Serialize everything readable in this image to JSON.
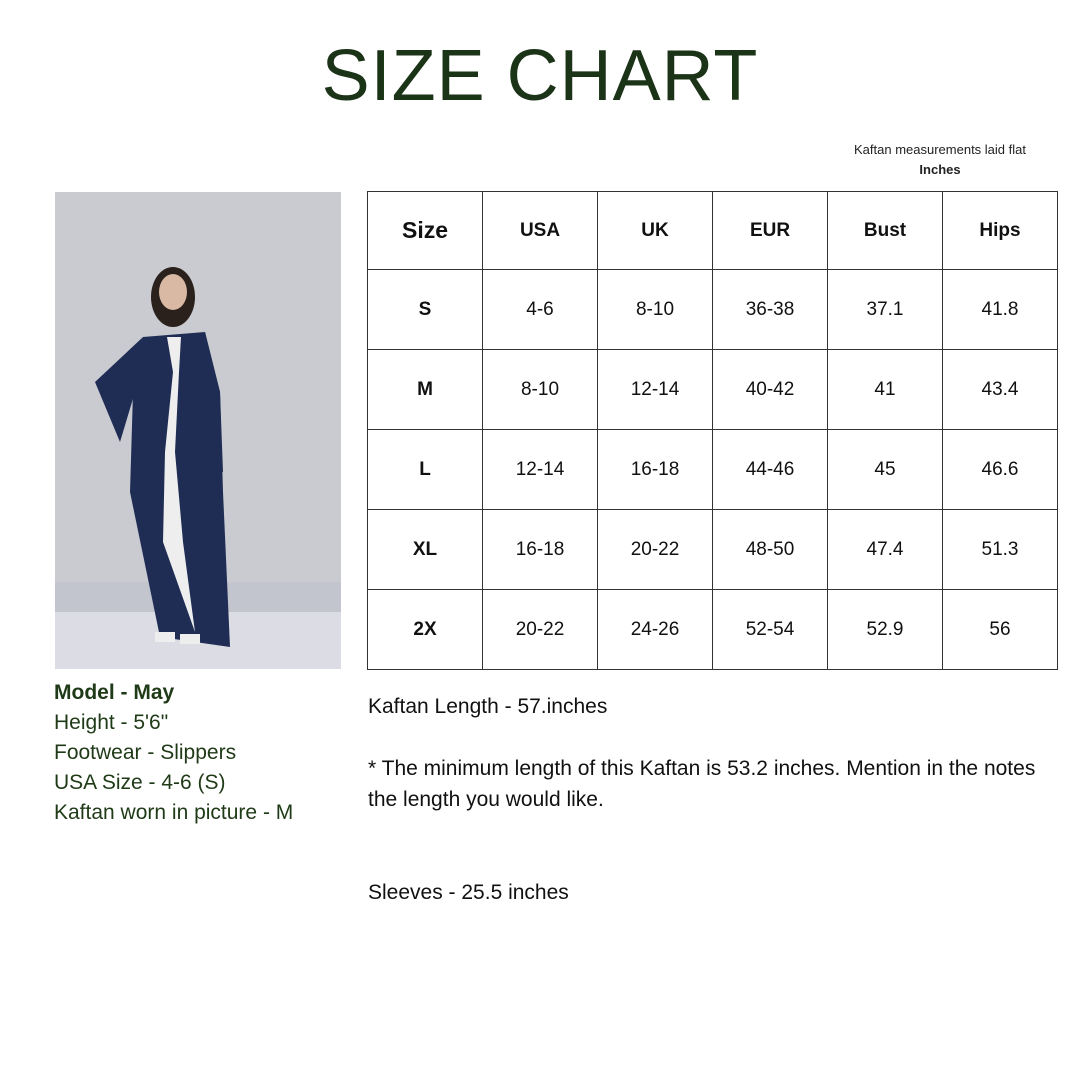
{
  "title": "SIZE CHART",
  "note": {
    "line1": "Kaftan measurements laid flat",
    "line2": "Inches"
  },
  "table": {
    "headers": [
      "Size",
      "USA",
      "UK",
      "EUR",
      "Bust",
      "Hips"
    ],
    "rows": [
      [
        "S",
        "4-6",
        "8-10",
        "36-38",
        "37.1",
        "41.8"
      ],
      [
        "M",
        "8-10",
        "12-14",
        "40-42",
        "41",
        "43.4"
      ],
      [
        "L",
        "12-14",
        "16-18",
        "44-46",
        "45",
        "46.6"
      ],
      [
        "XL",
        "16-18",
        "20-22",
        "48-50",
        "47.4",
        "51.3"
      ],
      [
        "2X",
        "20-22",
        "24-26",
        "52-54",
        "52.9",
        "56"
      ]
    ]
  },
  "model": [
    "Model - May",
    "Height - 5'6\"",
    "Footwear - Slippers",
    "USA Size - 4-6 (S)",
    "Kaftan worn in picture - M"
  ],
  "length": "Kaftan Length - 57.inches",
  "min_length": "* The minimum length of this Kaftan is 53.2 inches. Mention in the notes the length you would like.",
  "sleeves": "Sleeves - 25.5 inches",
  "colors": {
    "title": "#1b3317",
    "kaftan": "#1f2d55"
  }
}
